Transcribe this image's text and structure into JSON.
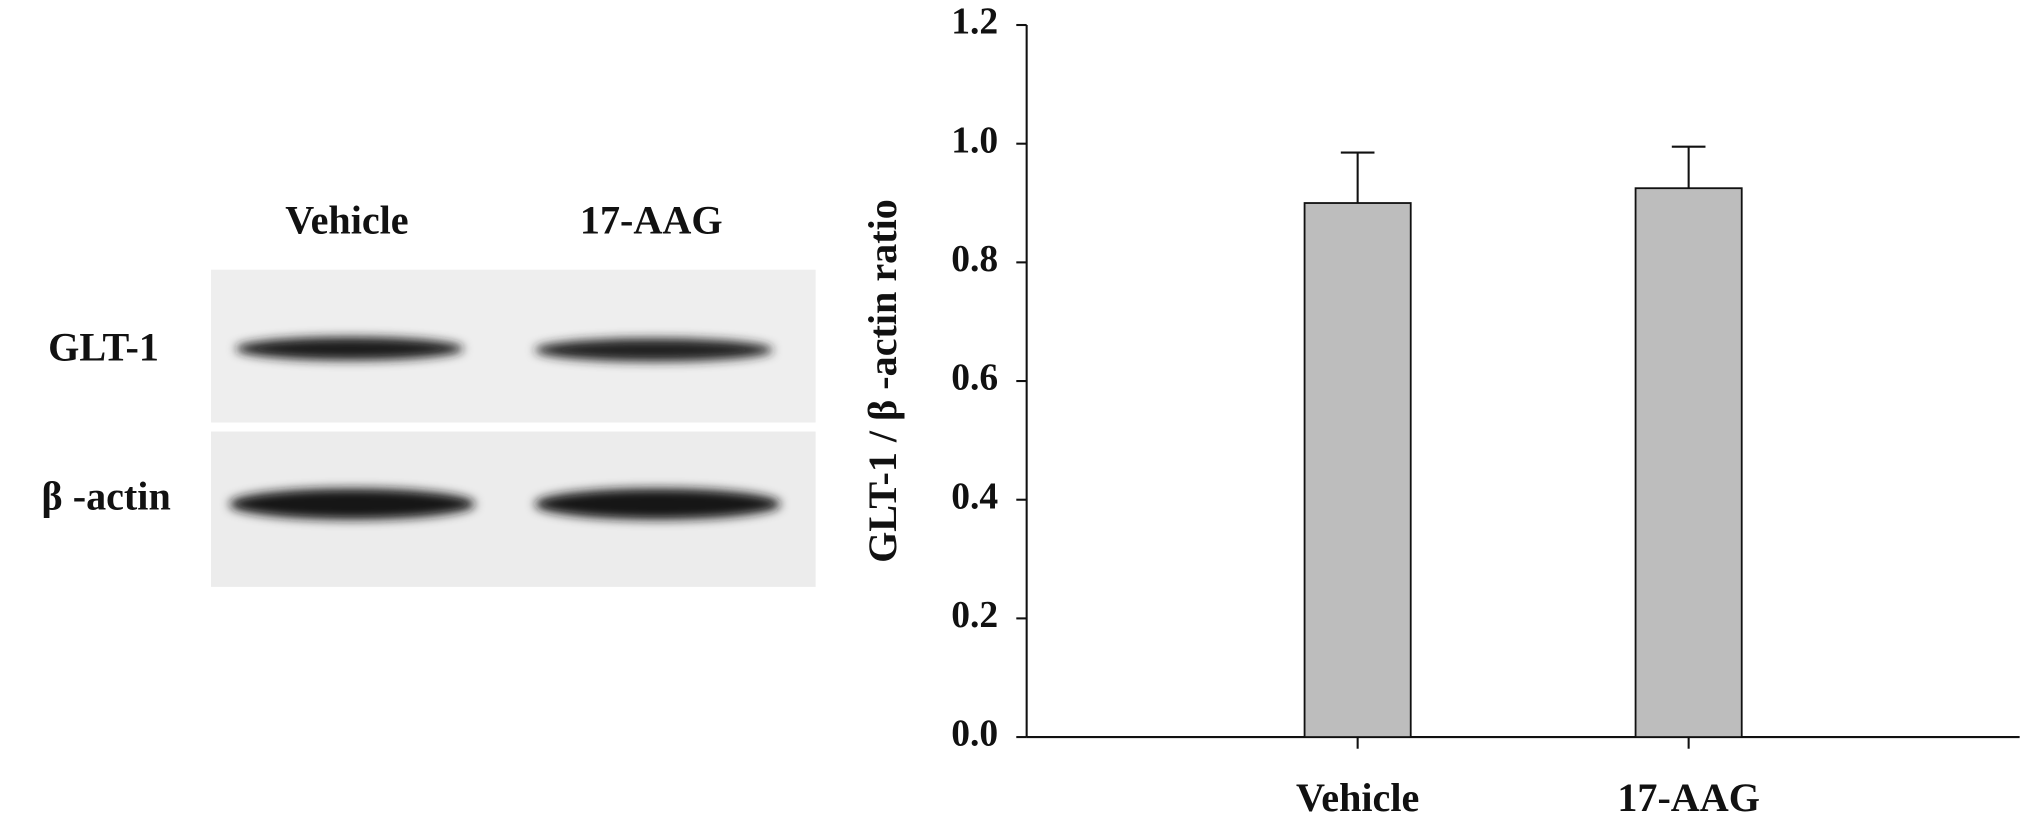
{
  "blot": {
    "lanes": [
      "Vehicle",
      "17-AAG"
    ],
    "rows": [
      "GLT-1",
      "β -actin"
    ]
  },
  "chart_data": {
    "type": "bar",
    "y_label": "GLT-1 / β -actin ratio",
    "categories": [
      "Vehicle",
      "17-AAG"
    ],
    "values": [
      0.9,
      0.925
    ],
    "errors": [
      0.085,
      0.07
    ],
    "color": "#bdbdbd",
    "ylim": [
      0,
      1.2
    ],
    "yticks": [
      {
        "value": 0,
        "label": "0.0"
      },
      0.2,
      0.4,
      0.6,
      0.8,
      {
        "value": 1,
        "label": "1.0"
      },
      1.2
    ]
  }
}
